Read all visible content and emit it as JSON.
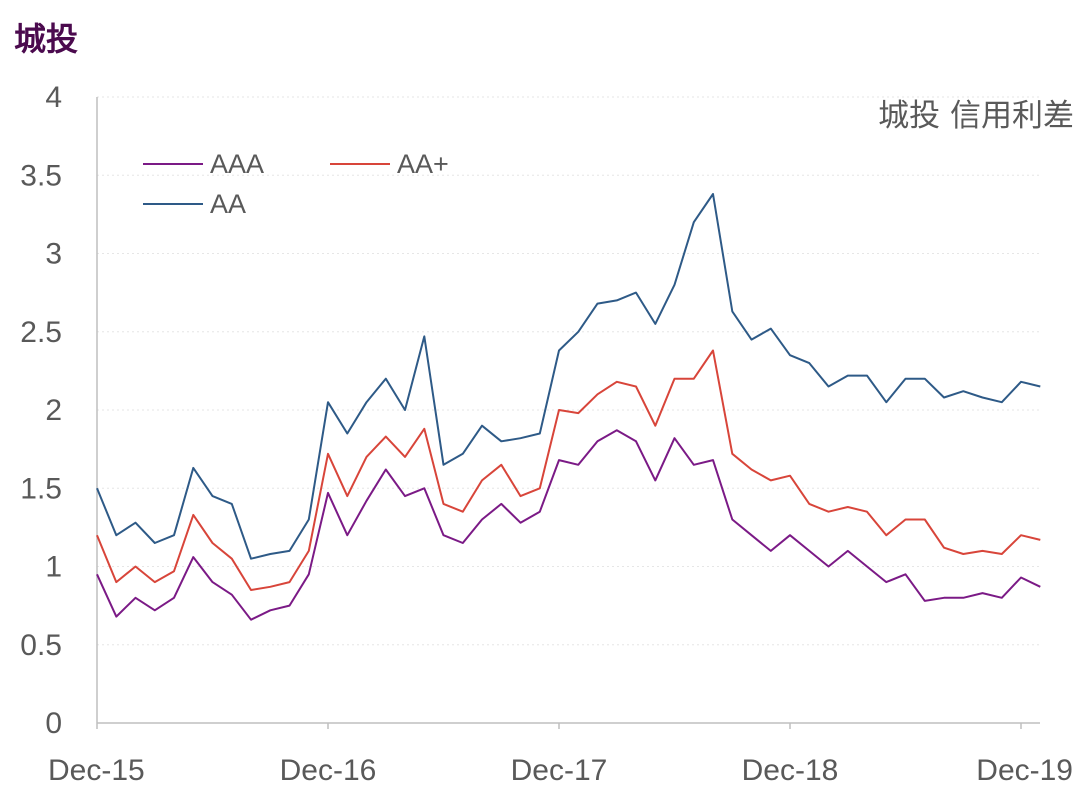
{
  "chart_data": {
    "type": "line",
    "title": "城投",
    "subtitle": "城投 信用利差",
    "title_color": "#4b0a4e",
    "grid": true,
    "grid_color": "#e6e6e6",
    "legend_position": "top-left",
    "ylim": [
      0,
      4
    ],
    "y_ticks": [
      0,
      0.5,
      1,
      1.5,
      2,
      2.5,
      3,
      3.5,
      4
    ],
    "y_tick_labels": [
      "0",
      "0.5",
      "1",
      "1.5",
      "2",
      "2.5",
      "3",
      "3.5",
      "4"
    ],
    "x_ticks": [
      "2015-12",
      "2016-12",
      "2017-12",
      "2018-12",
      "2019-12"
    ],
    "x_tick_labels": [
      "Dec-15",
      "Dec-16",
      "Dec-17",
      "Dec-18",
      "Dec-19"
    ],
    "x_range": [
      "2015-12",
      "2020-01"
    ],
    "series": [
      {
        "name": "AAA",
        "color": "#7b1a86",
        "points": [
          [
            "2015-12",
            0.95
          ],
          [
            "2016-01",
            0.68
          ],
          [
            "2016-02",
            0.8
          ],
          [
            "2016-03",
            0.72
          ],
          [
            "2016-04",
            0.8
          ],
          [
            "2016-05",
            1.06
          ],
          [
            "2016-06",
            0.9
          ],
          [
            "2016-07",
            0.82
          ],
          [
            "2016-08",
            0.66
          ],
          [
            "2016-09",
            0.72
          ],
          [
            "2016-10",
            0.75
          ],
          [
            "2016-11",
            0.95
          ],
          [
            "2016-12",
            1.47
          ],
          [
            "2017-01",
            1.2
          ],
          [
            "2017-02",
            1.42
          ],
          [
            "2017-03",
            1.62
          ],
          [
            "2017-04",
            1.45
          ],
          [
            "2017-05",
            1.5
          ],
          [
            "2017-06",
            1.2
          ],
          [
            "2017-07",
            1.15
          ],
          [
            "2017-08",
            1.3
          ],
          [
            "2017-09",
            1.4
          ],
          [
            "2017-10",
            1.28
          ],
          [
            "2017-11",
            1.35
          ],
          [
            "2017-12",
            1.68
          ],
          [
            "2018-01",
            1.65
          ],
          [
            "2018-02",
            1.8
          ],
          [
            "2018-03",
            1.87
          ],
          [
            "2018-04",
            1.8
          ],
          [
            "2018-05",
            1.55
          ],
          [
            "2018-06",
            1.82
          ],
          [
            "2018-07",
            1.65
          ],
          [
            "2018-08",
            1.68
          ],
          [
            "2018-09",
            1.3
          ],
          [
            "2018-10",
            1.2
          ],
          [
            "2018-11",
            1.1
          ],
          [
            "2018-12",
            1.2
          ],
          [
            "2019-01",
            1.1
          ],
          [
            "2019-02",
            1.0
          ],
          [
            "2019-03",
            1.1
          ],
          [
            "2019-04",
            1.0
          ],
          [
            "2019-05",
            0.9
          ],
          [
            "2019-06",
            0.95
          ],
          [
            "2019-07",
            0.78
          ],
          [
            "2019-08",
            0.8
          ],
          [
            "2019-09",
            0.8
          ],
          [
            "2019-10",
            0.83
          ],
          [
            "2019-11",
            0.8
          ],
          [
            "2019-12",
            0.93
          ],
          [
            "2020-01",
            0.87
          ]
        ]
      },
      {
        "name": "AA+",
        "color": "#d8453a",
        "points": [
          [
            "2015-12",
            1.2
          ],
          [
            "2016-01",
            0.9
          ],
          [
            "2016-02",
            1.0
          ],
          [
            "2016-03",
            0.9
          ],
          [
            "2016-04",
            0.97
          ],
          [
            "2016-05",
            1.33
          ],
          [
            "2016-06",
            1.15
          ],
          [
            "2016-07",
            1.05
          ],
          [
            "2016-08",
            0.85
          ],
          [
            "2016-09",
            0.87
          ],
          [
            "2016-10",
            0.9
          ],
          [
            "2016-11",
            1.1
          ],
          [
            "2016-12",
            1.72
          ],
          [
            "2017-01",
            1.45
          ],
          [
            "2017-02",
            1.7
          ],
          [
            "2017-03",
            1.83
          ],
          [
            "2017-04",
            1.7
          ],
          [
            "2017-05",
            1.88
          ],
          [
            "2017-06",
            1.4
          ],
          [
            "2017-07",
            1.35
          ],
          [
            "2017-08",
            1.55
          ],
          [
            "2017-09",
            1.65
          ],
          [
            "2017-10",
            1.45
          ],
          [
            "2017-11",
            1.5
          ],
          [
            "2017-12",
            2.0
          ],
          [
            "2018-01",
            1.98
          ],
          [
            "2018-02",
            2.1
          ],
          [
            "2018-03",
            2.18
          ],
          [
            "2018-04",
            2.15
          ],
          [
            "2018-05",
            1.9
          ],
          [
            "2018-06",
            2.2
          ],
          [
            "2018-07",
            2.2
          ],
          [
            "2018-08",
            2.38
          ],
          [
            "2018-09",
            1.72
          ],
          [
            "2018-10",
            1.62
          ],
          [
            "2018-11",
            1.55
          ],
          [
            "2018-12",
            1.58
          ],
          [
            "2019-01",
            1.4
          ],
          [
            "2019-02",
            1.35
          ],
          [
            "2019-03",
            1.38
          ],
          [
            "2019-04",
            1.35
          ],
          [
            "2019-05",
            1.2
          ],
          [
            "2019-06",
            1.3
          ],
          [
            "2019-07",
            1.3
          ],
          [
            "2019-08",
            1.12
          ],
          [
            "2019-09",
            1.08
          ],
          [
            "2019-10",
            1.1
          ],
          [
            "2019-11",
            1.08
          ],
          [
            "2019-12",
            1.2
          ],
          [
            "2020-01",
            1.17
          ]
        ]
      },
      {
        "name": "AA",
        "color": "#2e5a87",
        "points": [
          [
            "2015-12",
            1.5
          ],
          [
            "2016-01",
            1.2
          ],
          [
            "2016-02",
            1.28
          ],
          [
            "2016-03",
            1.15
          ],
          [
            "2016-04",
            1.2
          ],
          [
            "2016-05",
            1.63
          ],
          [
            "2016-06",
            1.45
          ],
          [
            "2016-07",
            1.4
          ],
          [
            "2016-08",
            1.05
          ],
          [
            "2016-09",
            1.08
          ],
          [
            "2016-10",
            1.1
          ],
          [
            "2016-11",
            1.3
          ],
          [
            "2016-12",
            2.05
          ],
          [
            "2017-01",
            1.85
          ],
          [
            "2017-02",
            2.05
          ],
          [
            "2017-03",
            2.2
          ],
          [
            "2017-04",
            2.0
          ],
          [
            "2017-05",
            2.47
          ],
          [
            "2017-06",
            1.65
          ],
          [
            "2017-07",
            1.72
          ],
          [
            "2017-08",
            1.9
          ],
          [
            "2017-09",
            1.8
          ],
          [
            "2017-10",
            1.82
          ],
          [
            "2017-11",
            1.85
          ],
          [
            "2017-12",
            2.38
          ],
          [
            "2018-01",
            2.5
          ],
          [
            "2018-02",
            2.68
          ],
          [
            "2018-03",
            2.7
          ],
          [
            "2018-04",
            2.75
          ],
          [
            "2018-05",
            2.55
          ],
          [
            "2018-06",
            2.8
          ],
          [
            "2018-07",
            3.2
          ],
          [
            "2018-08",
            3.38
          ],
          [
            "2018-09",
            2.63
          ],
          [
            "2018-10",
            2.45
          ],
          [
            "2018-11",
            2.52
          ],
          [
            "2018-12",
            2.35
          ],
          [
            "2019-01",
            2.3
          ],
          [
            "2019-02",
            2.15
          ],
          [
            "2019-03",
            2.22
          ],
          [
            "2019-04",
            2.22
          ],
          [
            "2019-05",
            2.05
          ],
          [
            "2019-06",
            2.2
          ],
          [
            "2019-07",
            2.2
          ],
          [
            "2019-08",
            2.08
          ],
          [
            "2019-09",
            2.12
          ],
          [
            "2019-10",
            2.08
          ],
          [
            "2019-11",
            2.05
          ],
          [
            "2019-12",
            2.18
          ],
          [
            "2020-01",
            2.15
          ]
        ]
      }
    ]
  }
}
